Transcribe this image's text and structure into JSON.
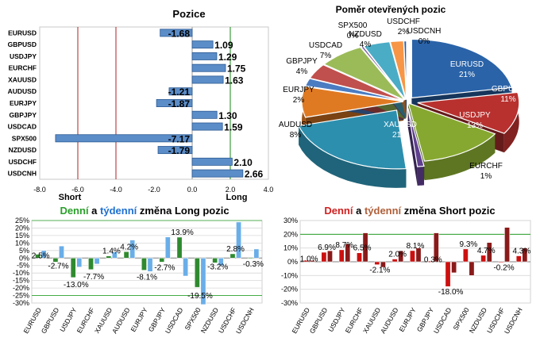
{
  "chart_data": [
    {
      "type": "bar",
      "orientation": "horizontal",
      "title": "Pozice",
      "categories": [
        "EURUSD",
        "GBPUSD",
        "USDJPY",
        "EURCHF",
        "XAUUSD",
        "AUDUSD",
        "EURJPY",
        "GBPJPY",
        "USDCAD",
        "SPX500",
        "NZDUSD",
        "USDCHF",
        "USDCNH"
      ],
      "values": [
        -1.68,
        1.09,
        1.29,
        1.75,
        1.63,
        -1.21,
        -1.87,
        1.3,
        1.59,
        -7.17,
        -1.79,
        2.1,
        2.66
      ],
      "labels": [
        "-1.68",
        "1.09",
        "1.29",
        "1.75",
        "1.63",
        "-1.21",
        "-1.87",
        "1.30",
        "1.59",
        "-7.17",
        "-1.79",
        "2.10",
        "2.66"
      ],
      "xlim": [
        -8.0,
        4.0
      ],
      "xticks": [
        "-8.0",
        "-6.0",
        "-4.0",
        "-2.0",
        "0.0",
        "2.0",
        "4.0"
      ],
      "short_label": "Short",
      "long_label": "Long"
    },
    {
      "type": "pie",
      "title": "Poměr otevřených pozic",
      "slices": [
        {
          "label": "EURUSD",
          "pct": "21%",
          "value": 21,
          "color": "#2a63a8"
        },
        {
          "label": "GBPUSD",
          "pct": "11%",
          "value": 11,
          "color": "#b8312f"
        },
        {
          "label": "USDJPY",
          "pct": "13%",
          "value": 13,
          "color": "#86a830"
        },
        {
          "label": "EURCHF",
          "pct": "1%",
          "value": 1,
          "color": "#5f3f8f"
        },
        {
          "label": "XAUUSD",
          "pct": "21%",
          "value": 21,
          "color": "#2d8fae"
        },
        {
          "label": "AUDUSD",
          "pct": "8%",
          "value": 8,
          "color": "#e07a22"
        },
        {
          "label": "EURJPY",
          "pct": "2%",
          "value": 2,
          "color": "#4a7cc2"
        },
        {
          "label": "GBPJPY",
          "pct": "4%",
          "value": 4,
          "color": "#c0504d"
        },
        {
          "label": "USDCAD",
          "pct": "7%",
          "value": 7,
          "color": "#9bbb59"
        },
        {
          "label": "SPX500",
          "pct": "0%",
          "value": 0.4,
          "color": "#8064a2"
        },
        {
          "label": "NZDUSD",
          "pct": "4%",
          "value": 4,
          "color": "#4bacc6"
        },
        {
          "label": "USDCHF",
          "pct": "2%",
          "value": 2,
          "color": "#f79646"
        },
        {
          "label": "USDCNH",
          "pct": "0%",
          "value": 0.4,
          "color": "#2f5e9e"
        }
      ]
    },
    {
      "type": "bar",
      "title_parts": [
        "Denní",
        " a ",
        "týdenní",
        " změna Long pozic"
      ],
      "title_colors": [
        "#2aa02a",
        "#000000",
        "#1e6fd0",
        "#000000"
      ],
      "categories": [
        "EURUSD",
        "GBPUSD",
        "USDJPY",
        "EURCHF",
        "XAUUSD",
        "AUDUSD",
        "EURJPY",
        "GBPJPY",
        "USDCAD",
        "SPX500",
        "NZDUSD",
        "USDCHF",
        "USDCNH"
      ],
      "series": [
        {
          "values": [
            2.5,
            -2.7,
            -13.0,
            -7.7,
            1.4,
            4.2,
            -8.1,
            -2.7,
            13.9,
            -19.5,
            -3.2,
            2.8,
            -0.3
          ],
          "color": "#2f8a2f"
        },
        {
          "values": [
            5.0,
            8.0,
            -6.0,
            -4.0,
            4.0,
            12.0,
            -9.0,
            14.0,
            -12.0,
            -31.0,
            -5.0,
            24.0,
            6.0
          ],
          "color": "#6aaee8"
        }
      ],
      "labels": [
        "2.5%",
        "-2.7%",
        "-13.0%",
        "-7.7%",
        "1.4%",
        "4.2%",
        "-8.1%",
        "-2.7%",
        "13.9%",
        "-19.5%",
        "-3.2%",
        "2.8%",
        "-0.3%"
      ],
      "ylim": [
        -30,
        25
      ],
      "yticks": [
        "25%",
        "20%",
        "15%",
        "10%",
        "5%",
        "0%",
        "-5%",
        "-10%",
        "-15%",
        "-20%",
        "-25%",
        "-30%"
      ]
    },
    {
      "type": "bar",
      "title_parts": [
        "Denní",
        " a ",
        "týdenní",
        " změna Short pozic"
      ],
      "title_colors": [
        "#d02020",
        "#000000",
        "#b0603a",
        "#000000"
      ],
      "categories": [
        "EURUSD",
        "GBPUSD",
        "USDJPY",
        "EURCHF",
        "XAUUSD",
        "AUDUSD",
        "EURJPY",
        "GBPJPY",
        "USDCAD",
        "SPX500",
        "NZDUSD",
        "USDCHF",
        "USDCNH"
      ],
      "series": [
        {
          "values": [
            1.0,
            6.9,
            8.7,
            6.5,
            -2.1,
            2.0,
            8.1,
            0.3,
            -18.0,
            9.3,
            4.7,
            -0.2,
            4.3
          ],
          "color": "#cc1010"
        },
        {
          "values": [
            1.0,
            8.0,
            13.0,
            21.0,
            -4.0,
            8.0,
            10.0,
            21.0,
            -8.0,
            -10.0,
            14.0,
            25.0,
            10.0
          ],
          "color": "#8a1a1a"
        }
      ],
      "labels": [
        "1.0%",
        "6.9%",
        "8.7%",
        "6.5%",
        "-2.1%",
        "2.0%",
        "8.1%",
        "0.3%",
        "-18.0%",
        "9.3%",
        "4.7%",
        "-0.2%",
        "4.3%"
      ],
      "ylim": [
        -30,
        30
      ],
      "yticks": [
        "30%",
        "20%",
        "10%",
        "0%",
        "-10%",
        "-20%",
        "-30%"
      ]
    }
  ]
}
